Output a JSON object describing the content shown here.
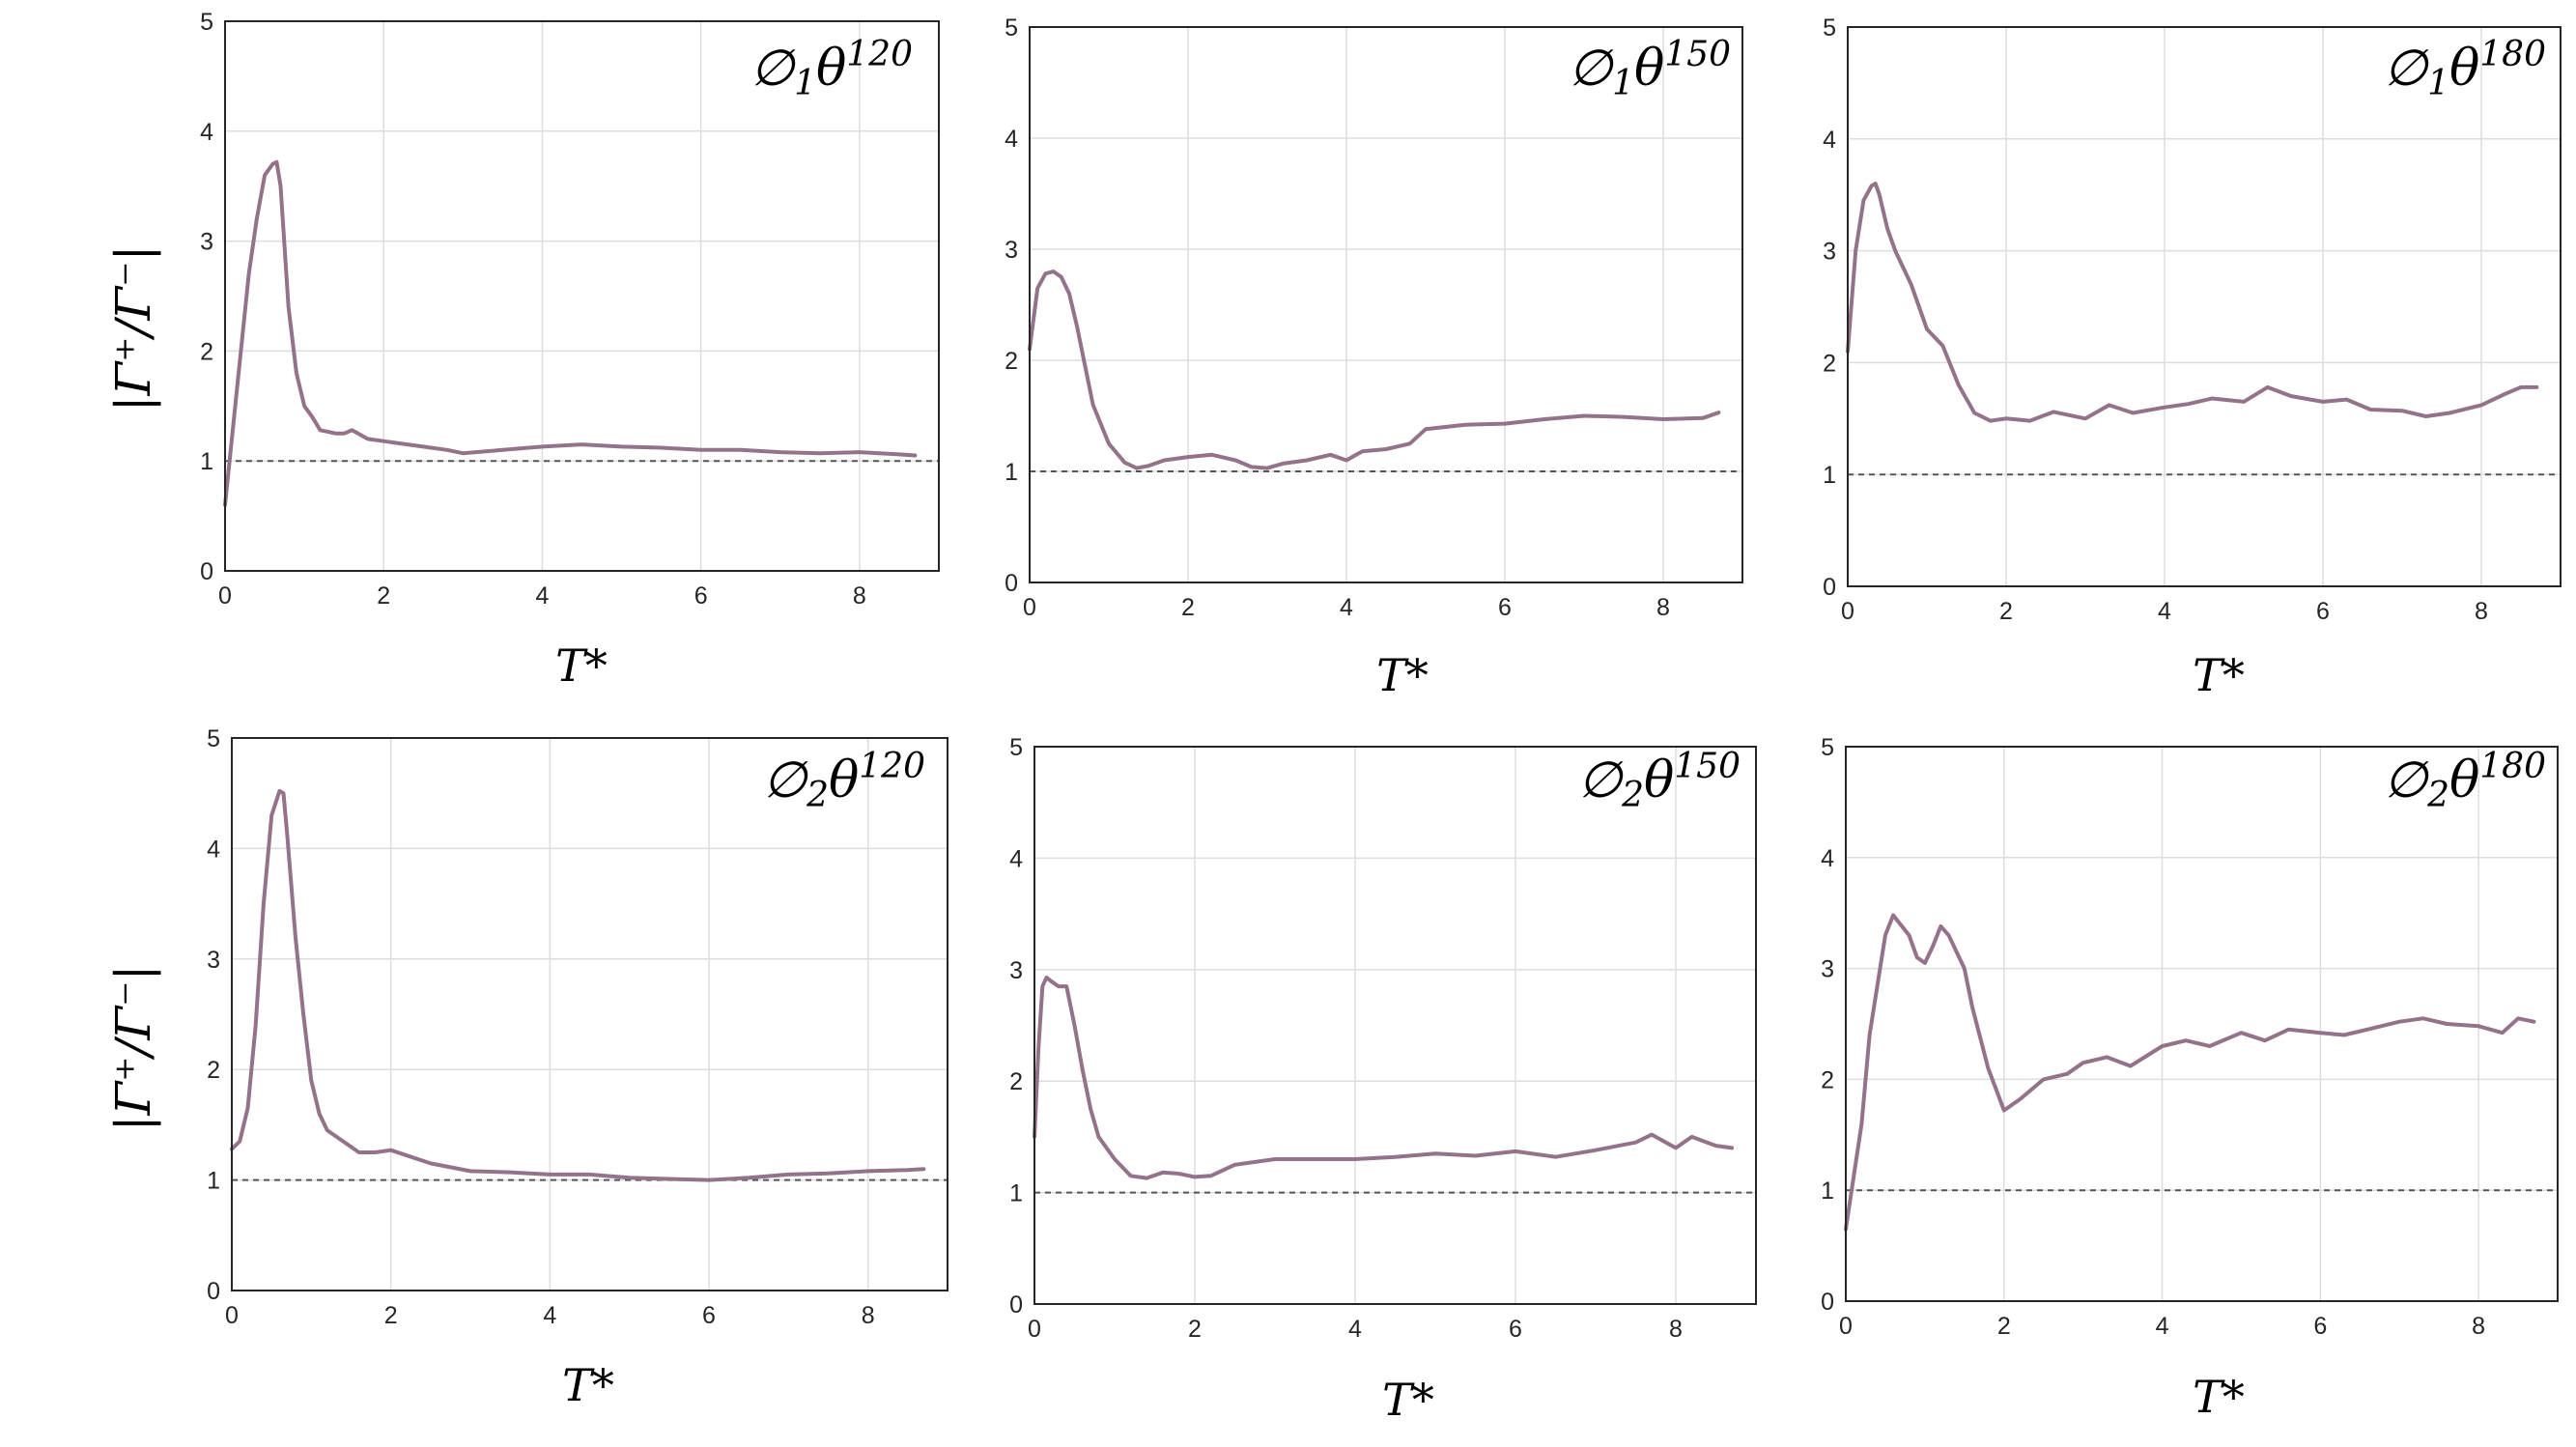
{
  "figure": {
    "ylabel": "|Γ⁺/Γ⁻|",
    "line_color": "#94738a",
    "reference_color": "#555555"
  },
  "chart_data": [
    {
      "type": "line",
      "title": {
        "prefix": "∅",
        "sub": "1",
        "theta": "θ",
        "sup": "120"
      },
      "xlabel": "T*",
      "ylabel": "|Γ⁺/Γ⁻|",
      "xlim": [
        0,
        9
      ],
      "ylim": [
        0,
        5
      ],
      "xticks": [
        "0",
        "2",
        "4",
        "6",
        "8"
      ],
      "yticks": [
        "0",
        "1",
        "2",
        "3",
        "4",
        "5"
      ],
      "grid": true,
      "reference_line": 1,
      "series": [
        {
          "x": [
            0,
            0.1,
            0.2,
            0.3,
            0.4,
            0.5,
            0.6,
            0.65,
            0.7,
            0.8,
            0.9,
            1.0,
            1.1,
            1.2,
            1.4,
            1.5,
            1.6,
            1.8,
            2.0,
            2.2,
            2.5,
            2.8,
            3.0,
            3.5,
            4.0,
            4.5,
            5.0,
            5.5,
            6.0,
            6.5,
            7.0,
            7.5,
            8.0,
            8.5,
            8.7
          ],
          "y": [
            0.6,
            1.3,
            2.0,
            2.7,
            3.2,
            3.6,
            3.7,
            3.72,
            3.5,
            2.4,
            1.8,
            1.5,
            1.4,
            1.28,
            1.25,
            1.25,
            1.28,
            1.2,
            1.18,
            1.16,
            1.13,
            1.1,
            1.07,
            1.1,
            1.13,
            1.15,
            1.13,
            1.12,
            1.1,
            1.1,
            1.08,
            1.07,
            1.08,
            1.06,
            1.05
          ]
        }
      ]
    },
    {
      "type": "line",
      "title": {
        "prefix": "∅",
        "sub": "1",
        "theta": "θ",
        "sup": "150"
      },
      "xlabel": "T*",
      "ylabel": "",
      "xlim": [
        0,
        9
      ],
      "ylim": [
        0,
        5
      ],
      "xticks": [
        "0",
        "2",
        "4",
        "6",
        "8"
      ],
      "yticks": [
        "0",
        "1",
        "2",
        "3",
        "4",
        "5"
      ],
      "grid": true,
      "reference_line": 1,
      "series": [
        {
          "x": [
            0,
            0.1,
            0.2,
            0.3,
            0.4,
            0.5,
            0.6,
            0.7,
            0.8,
            1.0,
            1.2,
            1.35,
            1.5,
            1.7,
            2.0,
            2.3,
            2.6,
            2.8,
            3.0,
            3.2,
            3.5,
            3.8,
            4.0,
            4.2,
            4.5,
            4.8,
            5.0,
            5.5,
            6.0,
            6.5,
            7.0,
            7.5,
            8.0,
            8.5,
            8.7
          ],
          "y": [
            2.1,
            2.65,
            2.78,
            2.8,
            2.75,
            2.6,
            2.3,
            1.95,
            1.6,
            1.25,
            1.08,
            1.03,
            1.05,
            1.1,
            1.13,
            1.15,
            1.1,
            1.04,
            1.03,
            1.07,
            1.1,
            1.15,
            1.1,
            1.18,
            1.2,
            1.25,
            1.38,
            1.42,
            1.43,
            1.47,
            1.5,
            1.49,
            1.47,
            1.48,
            1.53
          ]
        }
      ]
    },
    {
      "type": "line",
      "title": {
        "prefix": "∅",
        "sub": "1",
        "theta": "θ",
        "sup": "180"
      },
      "xlabel": "T*",
      "ylabel": "",
      "xlim": [
        0,
        9
      ],
      "ylim": [
        0,
        5
      ],
      "xticks": [
        "0",
        "2",
        "4",
        "6",
        "8"
      ],
      "yticks": [
        "0",
        "1",
        "2",
        "3",
        "4",
        "5"
      ],
      "grid": true,
      "reference_line": 1,
      "series": [
        {
          "x": [
            0,
            0.1,
            0.2,
            0.3,
            0.35,
            0.4,
            0.5,
            0.6,
            0.8,
            1.0,
            1.2,
            1.4,
            1.6,
            1.8,
            2.0,
            2.3,
            2.6,
            3.0,
            3.3,
            3.6,
            4.0,
            4.3,
            4.6,
            5.0,
            5.3,
            5.6,
            6.0,
            6.3,
            6.6,
            7.0,
            7.3,
            7.6,
            8.0,
            8.3,
            8.5,
            8.7
          ],
          "y": [
            2.1,
            3.0,
            3.45,
            3.58,
            3.6,
            3.5,
            3.2,
            3.0,
            2.7,
            2.3,
            2.15,
            1.8,
            1.55,
            1.48,
            1.5,
            1.48,
            1.56,
            1.5,
            1.62,
            1.55,
            1.6,
            1.63,
            1.68,
            1.65,
            1.78,
            1.7,
            1.65,
            1.67,
            1.58,
            1.57,
            1.52,
            1.55,
            1.62,
            1.72,
            1.78,
            1.78
          ]
        }
      ]
    },
    {
      "type": "line",
      "title": {
        "prefix": "∅",
        "sub": "2",
        "theta": "θ",
        "sup": "120"
      },
      "xlabel": "T*",
      "ylabel": "|Γ⁺/Γ⁻|",
      "xlim": [
        0,
        9
      ],
      "ylim": [
        0,
        5
      ],
      "xticks": [
        "0",
        "2",
        "4",
        "6",
        "8"
      ],
      "yticks": [
        "0",
        "1",
        "2",
        "3",
        "4",
        "5"
      ],
      "grid": true,
      "reference_line": 1,
      "series": [
        {
          "x": [
            0,
            0.1,
            0.2,
            0.3,
            0.4,
            0.5,
            0.6,
            0.65,
            0.7,
            0.8,
            0.9,
            1.0,
            1.1,
            1.2,
            1.4,
            1.6,
            1.8,
            2.0,
            2.5,
            3.0,
            3.5,
            4.0,
            4.5,
            5.0,
            5.5,
            6.0,
            6.5,
            7.0,
            7.5,
            8.0,
            8.5,
            8.7
          ],
          "y": [
            1.28,
            1.35,
            1.65,
            2.4,
            3.5,
            4.3,
            4.52,
            4.5,
            4.1,
            3.2,
            2.5,
            1.9,
            1.6,
            1.45,
            1.35,
            1.25,
            1.25,
            1.27,
            1.15,
            1.08,
            1.07,
            1.05,
            1.05,
            1.02,
            1.01,
            1.0,
            1.02,
            1.05,
            1.06,
            1.08,
            1.09,
            1.1
          ]
        }
      ]
    },
    {
      "type": "line",
      "title": {
        "prefix": "∅",
        "sub": "2",
        "theta": "θ",
        "sup": "150"
      },
      "xlabel": "T*",
      "ylabel": "",
      "xlim": [
        0,
        9
      ],
      "ylim": [
        0,
        5
      ],
      "xticks": [
        "0",
        "2",
        "4",
        "6",
        "8"
      ],
      "yticks": [
        "0",
        "1",
        "2",
        "3",
        "4",
        "5"
      ],
      "grid": true,
      "reference_line": 1,
      "series": [
        {
          "x": [
            0,
            0.05,
            0.1,
            0.15,
            0.2,
            0.3,
            0.4,
            0.5,
            0.6,
            0.7,
            0.8,
            1.0,
            1.2,
            1.4,
            1.6,
            1.8,
            2.0,
            2.2,
            2.5,
            3.0,
            3.5,
            4.0,
            4.5,
            5.0,
            5.5,
            6.0,
            6.5,
            7.0,
            7.5,
            7.7,
            8.0,
            8.2,
            8.5,
            8.7
          ],
          "y": [
            1.5,
            2.3,
            2.85,
            2.93,
            2.9,
            2.85,
            2.85,
            2.5,
            2.1,
            1.75,
            1.5,
            1.3,
            1.15,
            1.13,
            1.18,
            1.17,
            1.14,
            1.15,
            1.25,
            1.3,
            1.3,
            1.3,
            1.32,
            1.35,
            1.33,
            1.37,
            1.32,
            1.38,
            1.45,
            1.52,
            1.4,
            1.5,
            1.42,
            1.4
          ]
        }
      ]
    },
    {
      "type": "line",
      "title": {
        "prefix": "∅",
        "sub": "2",
        "theta": "θ",
        "sup": "180"
      },
      "xlabel": "T*",
      "ylabel": "",
      "xlim": [
        0,
        9
      ],
      "ylim": [
        0,
        5
      ],
      "xticks": [
        "0",
        "2",
        "4",
        "6",
        "8"
      ],
      "yticks": [
        "0",
        "1",
        "2",
        "3",
        "4",
        "5"
      ],
      "grid": true,
      "reference_line": 1,
      "series": [
        {
          "x": [
            0,
            0.2,
            0.3,
            0.5,
            0.6,
            0.8,
            0.9,
            1.0,
            1.1,
            1.2,
            1.3,
            1.5,
            1.6,
            1.8,
            2.0,
            2.2,
            2.5,
            2.8,
            3.0,
            3.3,
            3.6,
            4.0,
            4.3,
            4.6,
            5.0,
            5.3,
            5.6,
            6.0,
            6.3,
            6.6,
            7.0,
            7.3,
            7.6,
            8.0,
            8.3,
            8.5,
            8.7
          ],
          "y": [
            0.65,
            1.6,
            2.4,
            3.3,
            3.48,
            3.3,
            3.1,
            3.05,
            3.2,
            3.38,
            3.3,
            3.0,
            2.65,
            2.1,
            1.72,
            1.82,
            2.0,
            2.05,
            2.15,
            2.2,
            2.12,
            2.3,
            2.35,
            2.3,
            2.42,
            2.35,
            2.45,
            2.42,
            2.4,
            2.45,
            2.52,
            2.55,
            2.5,
            2.48,
            2.42,
            2.55,
            2.52
          ]
        }
      ]
    }
  ]
}
